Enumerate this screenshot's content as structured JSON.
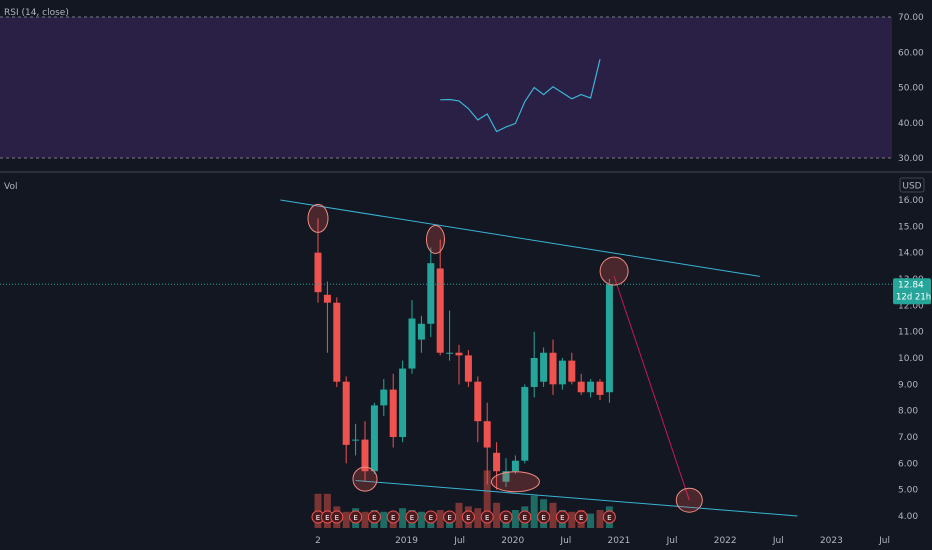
{
  "colors": {
    "background": "#131722",
    "rsi_band": "#2a1f44",
    "rsi_line": "#3ab4d4",
    "up": "#26a69a",
    "down": "#ef5350",
    "up_vol": "#1e6b63",
    "down_vol": "#7a3434",
    "trend": "#3ab4d4",
    "projection": "#c2185b",
    "circle": "#f28b82",
    "price_tag": "#26a69a"
  },
  "rsi_panel": {
    "label": "RSI (14, close)",
    "upper_band": "70.00",
    "lower_band": "30.00",
    "ticks": [
      "70.00",
      "60.00",
      "50.00",
      "40.00",
      "30.00"
    ]
  },
  "main_panel": {
    "vol_label": "Vol",
    "currency": "USD",
    "price_tag": "12.84",
    "countdown": "12d 21h",
    "earnings_marker": "E"
  },
  "chart_data": {
    "type": "candlestick",
    "interval": "monthly",
    "price_axis": {
      "ticks": [
        "16.00",
        "15.00",
        "14.00",
        "13.00",
        "12.00",
        "11.00",
        "10.00",
        "9.00",
        "8.00",
        "7.00",
        "6.00",
        "5.00",
        "4.00"
      ],
      "range": [
        4,
        16
      ]
    },
    "time_axis": {
      "ticks": [
        "2",
        "2019",
        "Jul",
        "2020",
        "Jul",
        "2021",
        "Jul",
        "2022",
        "Jul",
        "2023",
        "Jul"
      ]
    },
    "candles": [
      {
        "o": 14.0,
        "h": 15.3,
        "l": 12.1,
        "c": 12.5
      },
      {
        "o": 12.4,
        "h": 12.9,
        "l": 10.2,
        "c": 12.1
      },
      {
        "o": 12.1,
        "h": 12.3,
        "l": 8.9,
        "c": 9.1
      },
      {
        "o": 9.1,
        "h": 9.3,
        "l": 6.0,
        "c": 6.7
      },
      {
        "o": 6.9,
        "h": 7.5,
        "l": 6.3,
        "c": 6.9
      },
      {
        "o": 6.9,
        "h": 7.6,
        "l": 5.3,
        "c": 5.7
      },
      {
        "o": 5.7,
        "h": 8.3,
        "l": 5.6,
        "c": 8.2
      },
      {
        "o": 8.2,
        "h": 9.2,
        "l": 7.8,
        "c": 8.8
      },
      {
        "o": 8.8,
        "h": 9.4,
        "l": 6.6,
        "c": 7.0
      },
      {
        "o": 7.0,
        "h": 9.9,
        "l": 6.8,
        "c": 9.6
      },
      {
        "o": 9.6,
        "h": 12.2,
        "l": 9.4,
        "c": 11.5
      },
      {
        "o": 10.7,
        "h": 11.6,
        "l": 10.2,
        "c": 11.3
      },
      {
        "o": 11.3,
        "h": 14.2,
        "l": 10.8,
        "c": 13.6
      },
      {
        "o": 13.4,
        "h": 14.5,
        "l": 10.1,
        "c": 10.2
      },
      {
        "o": 10.2,
        "h": 11.8,
        "l": 9.9,
        "c": 10.2
      },
      {
        "o": 10.2,
        "h": 10.5,
        "l": 9.0,
        "c": 10.1
      },
      {
        "o": 10.1,
        "h": 10.3,
        "l": 8.9,
        "c": 9.1
      },
      {
        "o": 9.1,
        "h": 9.3,
        "l": 6.8,
        "c": 7.6
      },
      {
        "o": 7.6,
        "h": 8.3,
        "l": 5.2,
        "c": 6.6
      },
      {
        "o": 6.4,
        "h": 6.8,
        "l": 5.0,
        "c": 5.7
      },
      {
        "o": 5.3,
        "h": 6.2,
        "l": 5.1,
        "c": 5.7
      },
      {
        "o": 5.7,
        "h": 6.3,
        "l": 5.6,
        "c": 6.1
      },
      {
        "o": 6.1,
        "h": 9.0,
        "l": 6.0,
        "c": 8.9
      },
      {
        "o": 8.9,
        "h": 11.0,
        "l": 8.5,
        "c": 10.0
      },
      {
        "o": 9.1,
        "h": 10.4,
        "l": 8.9,
        "c": 10.2
      },
      {
        "o": 10.2,
        "h": 10.7,
        "l": 8.6,
        "c": 9.0
      },
      {
        "o": 9.0,
        "h": 10.0,
        "l": 8.8,
        "c": 9.9
      },
      {
        "o": 9.9,
        "h": 10.2,
        "l": 9.0,
        "c": 9.1
      },
      {
        "o": 9.1,
        "h": 9.4,
        "l": 8.6,
        "c": 8.7
      },
      {
        "o": 8.7,
        "h": 9.2,
        "l": 8.5,
        "c": 9.1
      },
      {
        "o": 9.1,
        "h": 9.2,
        "l": 8.4,
        "c": 8.6
      },
      {
        "o": 8.7,
        "h": 13.0,
        "l": 8.3,
        "c": 12.8
      }
    ],
    "volume": [
      0.95,
      0.95,
      0.6,
      0.45,
      0.55,
      0.45,
      0.5,
      0.45,
      0.4,
      0.55,
      0.5,
      0.45,
      0.45,
      0.5,
      0.45,
      0.7,
      0.6,
      0.55,
      1.6,
      0.7,
      0.45,
      0.5,
      0.6,
      0.9,
      0.8,
      0.7,
      0.5,
      0.45,
      0.5,
      0.4,
      0.5,
      0.6
    ],
    "rsi": [
      {
        "i": 13,
        "v": 46.5
      },
      {
        "i": 14,
        "v": 46.6
      },
      {
        "i": 15,
        "v": 46.2
      },
      {
        "i": 16,
        "v": 44.0
      },
      {
        "i": 17,
        "v": 40.8
      },
      {
        "i": 18,
        "v": 42.5
      },
      {
        "i": 19,
        "v": 37.5
      },
      {
        "i": 20,
        "v": 38.8
      },
      {
        "i": 21,
        "v": 39.8
      },
      {
        "i": 22,
        "v": 46.0
      },
      {
        "i": 23,
        "v": 50.0
      },
      {
        "i": 24,
        "v": 48.0
      },
      {
        "i": 25,
        "v": 50.2
      },
      {
        "i": 26,
        "v": 48.5
      },
      {
        "i": 27,
        "v": 46.8
      },
      {
        "i": 28,
        "v": 48.0
      },
      {
        "i": 29,
        "v": 47.0
      },
      {
        "i": 30,
        "v": 58.0
      }
    ],
    "earnings_months": [
      0,
      1,
      2,
      4,
      6,
      8,
      10,
      12,
      14,
      16,
      18,
      20,
      22,
      24,
      26,
      28,
      31
    ],
    "upper_trendline": {
      "from": [
        -4,
        16.0
      ],
      "to": [
        47,
        13.1
      ]
    },
    "lower_trendline": {
      "from": [
        4,
        5.35
      ],
      "to": [
        51,
        4.0
      ]
    },
    "projection_line": {
      "from": [
        31.5,
        13.1
      ],
      "to": [
        39.5,
        4.6
      ]
    },
    "circled_points": [
      {
        "i": 0,
        "v": 15.3,
        "rx": 10,
        "ry": 14
      },
      {
        "i": 12.5,
        "v": 14.5,
        "rx": 9,
        "ry": 14
      },
      {
        "i": 31.5,
        "v": 13.3,
        "rx": 14,
        "ry": 14
      },
      {
        "i": 5,
        "v": 5.4,
        "rx": 12,
        "ry": 12
      },
      {
        "i": 21,
        "v": 5.3,
        "rx": 24,
        "ry": 10
      },
      {
        "i": 39.5,
        "v": 4.6,
        "rx": 13,
        "ry": 12
      }
    ]
  }
}
